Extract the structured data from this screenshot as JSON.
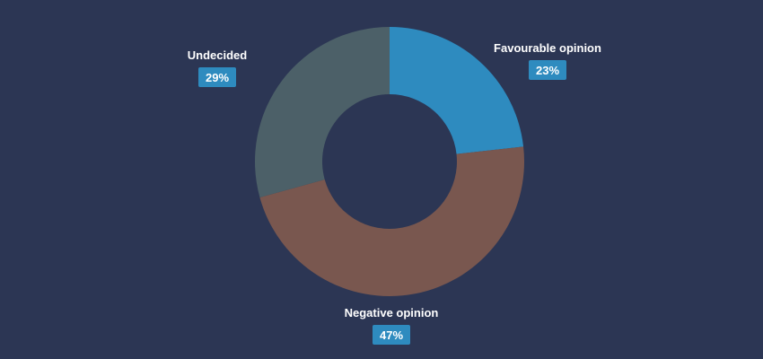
{
  "chart_data": {
    "type": "pie",
    "donut": true,
    "categories": [
      "Favourable opinion",
      "Negative opinion",
      "Undecided"
    ],
    "values": [
      23,
      47,
      29
    ],
    "value_labels": [
      "23%",
      "47%",
      "29%"
    ],
    "colors": [
      "#2e8bbf",
      "#79574f",
      "#4c6068"
    ],
    "badge_color": "#2e8bbf",
    "background": "#2c3654",
    "legend": "none"
  }
}
